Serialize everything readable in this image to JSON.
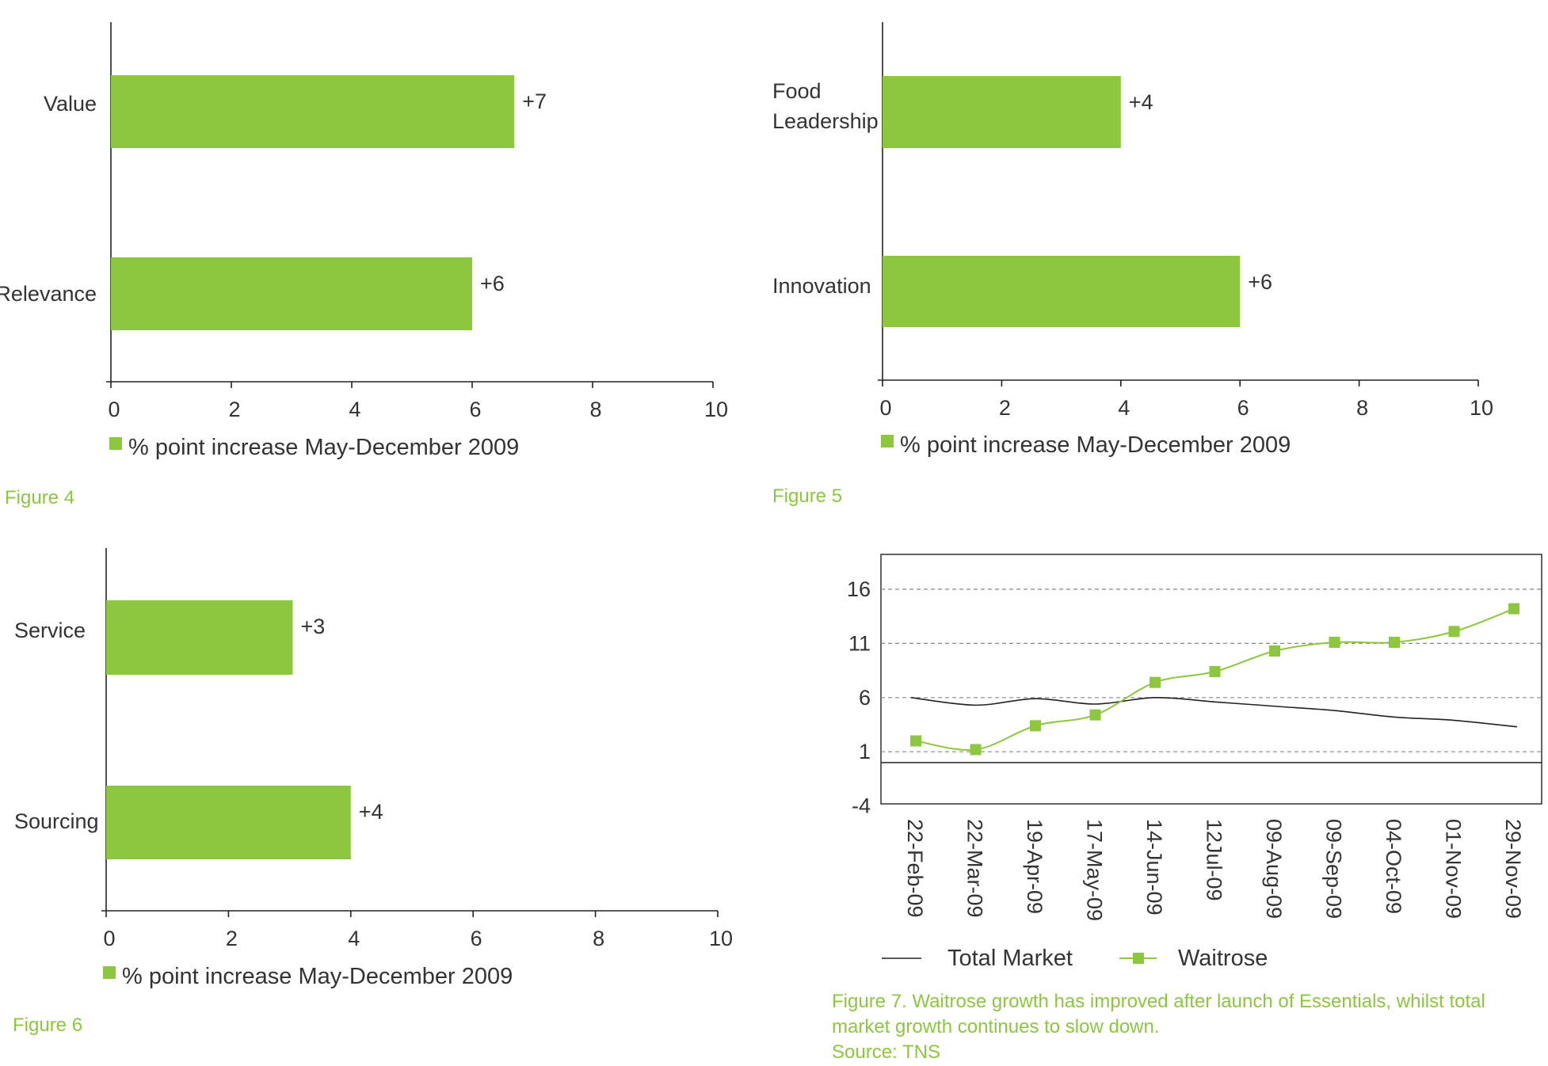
{
  "colors": {
    "bar": "#8dc63f",
    "waitrose": "#8dc63f",
    "total_market": "#222222",
    "negative_tick": "#d9232e"
  },
  "charts": [
    {
      "id": "figure4",
      "caption": "Figure 4",
      "chart_data": {
        "type": "bar",
        "orientation": "horizontal",
        "categories": [
          "Value",
          "Relevance"
        ],
        "values": [
          6.7,
          6.0
        ],
        "data_labels": [
          "+7",
          "+6"
        ],
        "xlim": [
          0,
          10
        ],
        "xticks": [
          0,
          2,
          4,
          6,
          8,
          10
        ],
        "series": [
          {
            "name": "% point increase May-December 2009"
          }
        ]
      }
    },
    {
      "id": "figure5",
      "caption": "Figure 5",
      "chart_data": {
        "type": "bar",
        "orientation": "horizontal",
        "categories": [
          "Food\nLeadership",
          "Innovation"
        ],
        "values": [
          4.0,
          6.0
        ],
        "data_labels": [
          "+4",
          "+6"
        ],
        "xlim": [
          0,
          10
        ],
        "xticks": [
          0,
          2,
          4,
          6,
          8,
          10
        ],
        "series": [
          {
            "name": "% point increase May-December 2009"
          }
        ]
      }
    },
    {
      "id": "figure6",
      "caption": "Figure 6",
      "chart_data": {
        "type": "bar",
        "orientation": "horizontal",
        "categories": [
          "Service",
          "Sourcing"
        ],
        "values": [
          3.05,
          4.0
        ],
        "data_labels": [
          "+3",
          "+4"
        ],
        "xlim": [
          0,
          10
        ],
        "xticks": [
          0,
          2,
          4,
          6,
          8,
          10
        ],
        "series": [
          {
            "name": "% point increase May-December 2009"
          }
        ]
      }
    },
    {
      "id": "figure7",
      "caption_lines": [
        "Figure 7. Waitrose growth has improved after launch of Essentials, whilst total",
        "market growth continues to slow down.",
        "Source: TNS"
      ],
      "chart_data": {
        "type": "line",
        "x": [
          "22-Feb-09",
          "22-Mar-09",
          "19-Apr-09",
          "17-May-09",
          "14-Jun-09",
          "12Jul-09",
          "09-Aug-09",
          "09-Sep-09",
          "04-Oct-09",
          "01-Nov-09",
          "29-Nov-09"
        ],
        "ylim": [
          -4,
          18.5
        ],
        "yticks": [
          16,
          11,
          6,
          1,
          -4
        ],
        "grid": true,
        "legend": "bottom",
        "series": [
          {
            "name": "Total Market",
            "marker": "none",
            "values": [
              6.0,
              5.3,
              5.9,
              5.4,
              6.0,
              5.6,
              5.2,
              4.8,
              4.2,
              3.9,
              3.3
            ]
          },
          {
            "name": "Waitrose",
            "marker": "square",
            "values": [
              2.0,
              1.2,
              3.4,
              4.4,
              7.4,
              8.4,
              10.3,
              11.1,
              11.1,
              12.1,
              14.2
            ]
          }
        ]
      }
    }
  ]
}
